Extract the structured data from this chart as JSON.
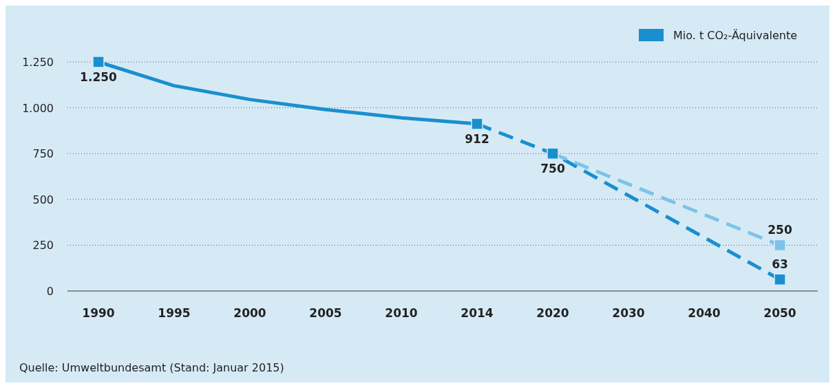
{
  "chart_data": {
    "type": "line",
    "categories": [
      "1990",
      "1995",
      "2000",
      "2005",
      "2010",
      "2014",
      "2020",
      "2030",
      "2040",
      "2050"
    ],
    "series": [
      {
        "name": "Mio. t CO₂-Äquivalente",
        "color": "#1a8fd0",
        "line_style": "solid",
        "values": [
          1250,
          1120,
          1045,
          990,
          945,
          912,
          null,
          null,
          null,
          null
        ]
      },
      {
        "color": "#1a8fd0",
        "line_style": "dashed",
        "values": [
          null,
          null,
          null,
          null,
          null,
          912,
          750,
          521,
          292,
          63
        ]
      },
      {
        "color": "#7cc3ea",
        "line_style": "dashed",
        "values": [
          null,
          null,
          null,
          null,
          null,
          null,
          750,
          583,
          417,
          250
        ]
      },
      {
        "type": "scatter",
        "color": "#1a8fd0",
        "marker": "square",
        "values": [
          1250,
          null,
          null,
          null,
          null,
          912,
          750,
          null,
          null,
          63
        ],
        "value_labels": [
          "1.250",
          null,
          null,
          null,
          null,
          "912",
          "750",
          null,
          null,
          "63"
        ]
      },
      {
        "type": "scatter",
        "color": "#7cc3ea",
        "marker": "square",
        "values": [
          null,
          null,
          null,
          null,
          null,
          null,
          null,
          null,
          null,
          250
        ],
        "value_labels": [
          null,
          null,
          null,
          null,
          null,
          null,
          null,
          null,
          null,
          "250"
        ]
      }
    ],
    "ylim": [
      0,
      1250
    ],
    "yticks": [
      0,
      250,
      500,
      750,
      {
        "value": 1000,
        "label": "1.000"
      },
      {
        "value": 1250,
        "label": "1.250"
      }
    ],
    "grid": "y",
    "legend": "top right",
    "annotations": [
      "Quelle: Umweltbundesamt (Stand: Januar 2015)"
    ]
  }
}
